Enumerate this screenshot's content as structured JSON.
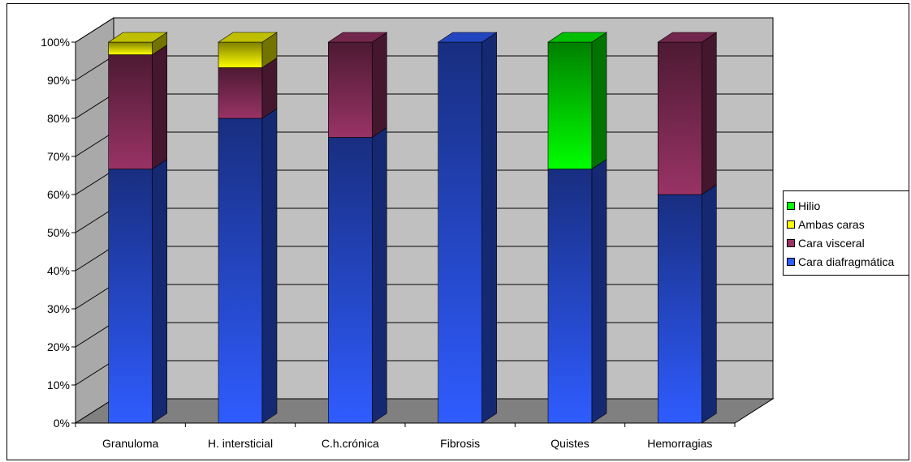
{
  "chart_data": {
    "type": "bar",
    "stacked": "percent",
    "three_d": true,
    "title": "",
    "xlabel": "",
    "ylabel": "",
    "ylim": [
      0,
      100
    ],
    "y_ticks": [
      "0%",
      "10%",
      "20%",
      "30%",
      "40%",
      "50%",
      "60%",
      "70%",
      "80%",
      "90%",
      "100%"
    ],
    "grid": true,
    "legend_position": "right",
    "categories": [
      "Granuloma",
      "H. intersticial",
      "C.h.crónica",
      "Fibrosis",
      "Quistes",
      "Hemorragias"
    ],
    "series": [
      {
        "name": "Cara diafragmática",
        "color": "#2f5cff",
        "values": [
          66.7,
          80,
          75,
          100,
          66.7,
          60
        ]
      },
      {
        "name": "Cara visceral",
        "color": "#993366",
        "values": [
          30,
          13.3,
          25,
          0,
          0,
          40
        ]
      },
      {
        "name": "Ambas caras",
        "color": "#ffff00",
        "values": [
          3.3,
          6.7,
          0,
          0,
          0,
          0
        ]
      },
      {
        "name": "Hilio",
        "color": "#00ff00",
        "values": [
          0,
          0,
          0,
          0,
          33.3,
          0
        ]
      }
    ],
    "legend_order": [
      "Hilio",
      "Ambas caras",
      "Cara visceral",
      "Cara diafragmática"
    ]
  }
}
